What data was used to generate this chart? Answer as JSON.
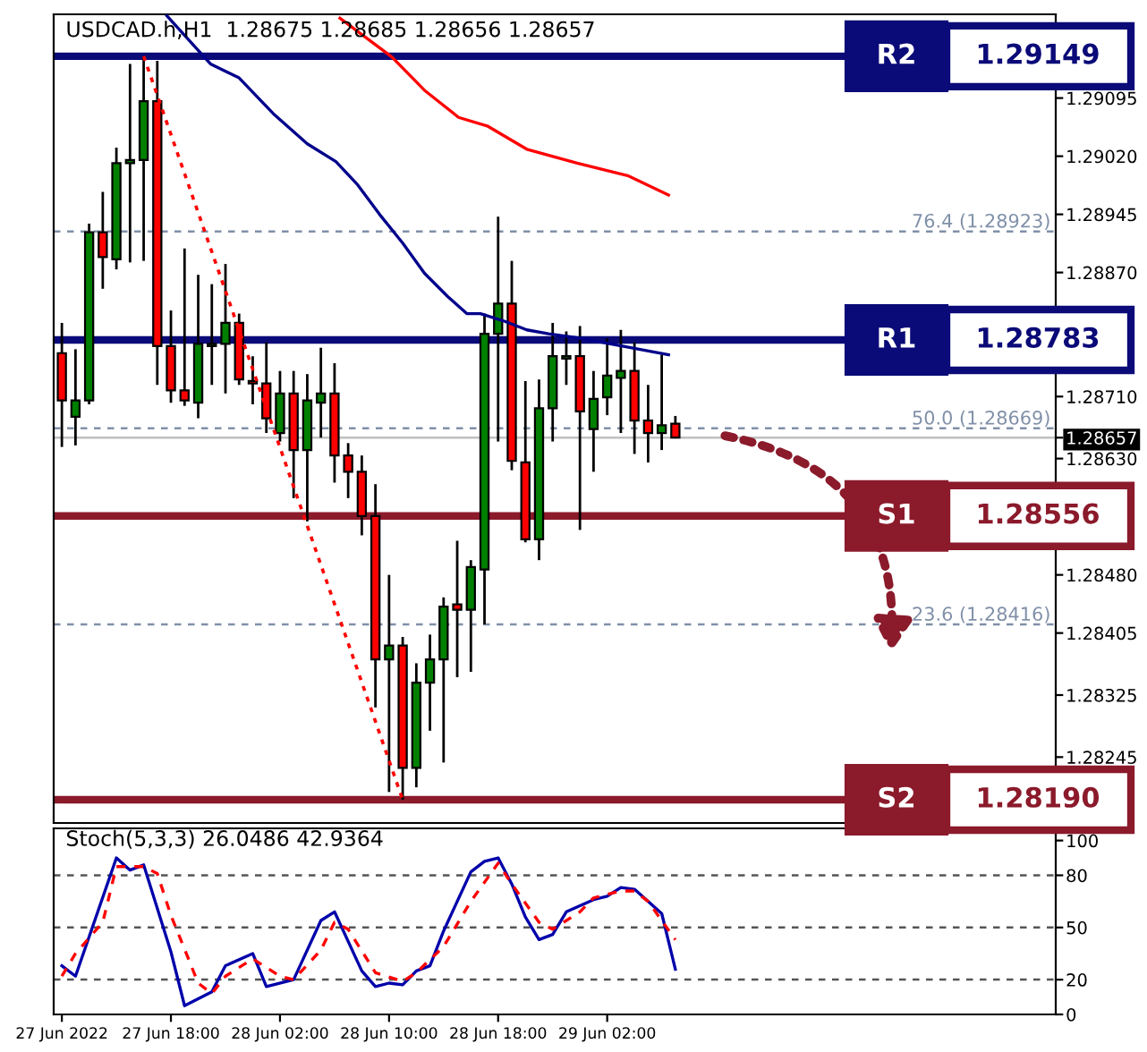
{
  "chart_data": [
    {
      "type": "candlestick",
      "title": "USDCAD.h,H1  1.28675 1.28685 1.28656 1.28657",
      "x": [
        "2022-06-27T10:00",
        "2022-06-27T11:00",
        "2022-06-27T12:00",
        "2022-06-27T13:00",
        "2022-06-27T14:00",
        "2022-06-27T15:00",
        "2022-06-27T16:00",
        "2022-06-27T17:00",
        "2022-06-27T18:00",
        "2022-06-27T19:00",
        "2022-06-27T20:00",
        "2022-06-27T21:00",
        "2022-06-27T22:00",
        "2022-06-27T23:00",
        "2022-06-28T00:00",
        "2022-06-28T01:00",
        "2022-06-28T02:00",
        "2022-06-28T03:00",
        "2022-06-28T04:00",
        "2022-06-28T05:00",
        "2022-06-28T06:00",
        "2022-06-28T07:00",
        "2022-06-28T08:00",
        "2022-06-28T09:00",
        "2022-06-28T10:00",
        "2022-06-28T11:00",
        "2022-06-28T12:00",
        "2022-06-28T13:00",
        "2022-06-28T14:00",
        "2022-06-28T15:00",
        "2022-06-28T16:00",
        "2022-06-28T17:00",
        "2022-06-28T18:00",
        "2022-06-28T19:00",
        "2022-06-28T20:00",
        "2022-06-28T21:00",
        "2022-06-28T22:00",
        "2022-06-28T23:00",
        "2022-06-29T00:00",
        "2022-06-29T01:00",
        "2022-06-29T02:00",
        "2022-06-29T03:00",
        "2022-06-29T04:00",
        "2022-06-29T05:00",
        "2022-06-29T06:00",
        "2022-06-29T07:00"
      ],
      "ohlc": [
        [
          1.28766,
          1.28805,
          1.28645,
          1.28705
        ],
        [
          1.28684,
          1.28771,
          1.28647,
          1.28705
        ],
        [
          1.28705,
          1.28933,
          1.287,
          1.28922
        ],
        [
          1.28922,
          1.28974,
          1.28849,
          1.2889
        ],
        [
          1.28887,
          1.29031,
          1.28874,
          1.29011
        ],
        [
          1.29011,
          1.29139,
          1.28883,
          1.29015
        ],
        [
          1.29015,
          1.29149,
          1.28885,
          1.29091
        ],
        [
          1.29091,
          1.29143,
          1.28725,
          1.28775
        ],
        [
          1.28775,
          1.28821,
          1.28702,
          1.28718
        ],
        [
          1.28718,
          1.28901,
          1.28698,
          1.28705
        ],
        [
          1.28702,
          1.28867,
          1.28682,
          1.28778
        ],
        [
          1.28775,
          1.28855,
          1.28725,
          1.28778
        ],
        [
          1.28778,
          1.28881,
          1.28714,
          1.28805
        ],
        [
          1.28805,
          1.28817,
          1.28725,
          1.28732
        ],
        [
          1.2873,
          1.28762,
          1.287,
          1.28727
        ],
        [
          1.28727,
          1.2878,
          1.28663,
          1.28682
        ],
        [
          1.28663,
          1.28743,
          1.28652,
          1.28714
        ],
        [
          1.28714,
          1.28743,
          1.28579,
          1.28641
        ],
        [
          1.28641,
          1.28739,
          1.28549,
          1.28705
        ],
        [
          1.28702,
          1.28773,
          1.28657,
          1.28714
        ],
        [
          1.28714,
          1.28753,
          1.28599,
          1.28634
        ],
        [
          1.28634,
          1.2865,
          1.28579,
          1.28613
        ],
        [
          1.28613,
          1.28634,
          1.28531,
          1.28556
        ],
        [
          1.28556,
          1.28597,
          1.28309,
          1.28371
        ],
        [
          1.28371,
          1.2848,
          1.282,
          1.28389
        ],
        [
          1.28389,
          1.284,
          1.2819,
          1.28231
        ],
        [
          1.28231,
          1.28366,
          1.28206,
          1.28341
        ],
        [
          1.28341,
          1.28403,
          1.28279,
          1.28371
        ],
        [
          1.28371,
          1.28451,
          1.28238,
          1.28439
        ],
        [
          1.28442,
          1.28524,
          1.28348,
          1.28435
        ],
        [
          1.28435,
          1.28499,
          1.28355,
          1.2849
        ],
        [
          1.28487,
          1.28817,
          1.28416,
          1.28791
        ],
        [
          1.28791,
          1.28942,
          1.28652,
          1.2883
        ],
        [
          1.2883,
          1.28885,
          1.28615,
          1.28627
        ],
        [
          1.28625,
          1.2873,
          1.28522,
          1.28526
        ],
        [
          1.28526,
          1.28732,
          1.28499,
          1.28695
        ],
        [
          1.28695,
          1.28805,
          1.28652,
          1.28762
        ],
        [
          1.28759,
          1.28794,
          1.28725,
          1.28762
        ],
        [
          1.28762,
          1.28801,
          1.28538,
          1.28691
        ],
        [
          1.28668,
          1.28743,
          1.28613,
          1.28707
        ],
        [
          1.28709,
          1.28785,
          1.28686,
          1.28737
        ],
        [
          1.28734,
          1.28796,
          1.28663,
          1.28743
        ],
        [
          1.28743,
          1.2878,
          1.28636,
          1.28679
        ],
        [
          1.28679,
          1.28725,
          1.28625,
          1.28663
        ],
        [
          1.28663,
          1.28764,
          1.28641,
          1.28673
        ],
        [
          1.28675,
          1.28685,
          1.28656,
          1.28657
        ]
      ],
      "series": [
        {
          "type": "line",
          "color": "#00008b",
          "line_style": "solid",
          "x": [
            "2022-06-27T17:42",
            "2022-06-27T20:54",
            "2022-06-27T23:00",
            "2022-06-28T01:30",
            "2022-06-28T04:00",
            "2022-06-28T06:06",
            "2022-06-28T07:42",
            "2022-06-28T09:18",
            "2022-06-28T11:00",
            "2022-06-28T12:36",
            "2022-06-28T14:18",
            "2022-06-28T15:42",
            "2022-06-28T16:42",
            "2022-06-28T18:30",
            "2022-06-28T20:06",
            "2022-06-28T21:42",
            "2022-06-29T00:12",
            "2022-06-29T01:00",
            "2022-06-29T06:30"
          ],
          "values": [
            1.29201,
            1.29139,
            1.29121,
            1.29075,
            1.29036,
            1.29013,
            1.28983,
            1.28945,
            1.28908,
            1.28869,
            1.28839,
            1.28817,
            1.28817,
            1.28807,
            1.28796,
            1.28791,
            1.28785,
            1.28782,
            1.28764
          ]
        },
        {
          "type": "line",
          "color": "#ff0000",
          "line_style": "solid",
          "x": [
            "2022-06-28T06:24",
            "2022-06-28T10:12",
            "2022-06-28T12:36",
            "2022-06-28T15:06",
            "2022-06-28T17:12",
            "2022-06-28T20:06",
            "2022-06-28T23:48",
            "2022-06-29T03:30",
            "2022-06-29T06:30"
          ],
          "values": [
            1.29198,
            1.29148,
            1.29105,
            1.2907,
            1.29059,
            1.29029,
            1.29011,
            1.28995,
            1.2897
          ]
        },
        {
          "type": "line",
          "color": "#ff0000",
          "line_style": "dotted",
          "x": [
            "2022-06-27T16:00",
            "2022-06-28T11:00"
          ],
          "values": [
            1.29149,
            1.2819
          ]
        }
      ],
      "xlim": [
        "2022-06-27T09:24",
        "2022-06-30T10:54"
      ],
      "ylim": [
        1.2816,
        1.29203
      ],
      "yticks": [
        {
          "value": 1.29095,
          "label": "1.29095"
        },
        {
          "value": 1.2902,
          "label": "1.29020"
        },
        {
          "value": 1.28945,
          "label": "1.28945"
        },
        {
          "value": 1.2887,
          "label": "1.28870"
        },
        {
          "value": 1.2871,
          "label": "1.28710"
        },
        {
          "value": 1.28657,
          "label": "1.28657"
        },
        {
          "value": 1.2863,
          "label": "1.28630"
        },
        {
          "value": 1.2848,
          "label": "1.28480"
        },
        {
          "value": 1.28405,
          "label": "1.28405"
        },
        {
          "value": 1.28325,
          "label": "1.28325"
        },
        {
          "value": 1.28245,
          "label": "1.28245"
        }
      ],
      "tick_labels": "y",
      "ref_lines": [
        {
          "axis": "y",
          "value": 1.28923,
          "label": "76.4 (1.28923)",
          "color": "#8090a8",
          "line_style": "dashed"
        },
        {
          "axis": "y",
          "value": 1.28669,
          "label": "50.0 (1.28669)",
          "color": "#8090a8",
          "line_style": "dashed"
        },
        {
          "axis": "y",
          "value": 1.28416,
          "label": "23.6 (1.28416)",
          "color": "#8090a8",
          "line_style": "dashed"
        },
        {
          "axis": "y",
          "value": 1.28657,
          "color": "#c0c0c0",
          "line_style": "solid"
        },
        {
          "axis": "y",
          "value": 1.29149,
          "label": "R2 1.29149",
          "color": "#0a0a78",
          "line_style": "solid"
        },
        {
          "axis": "y",
          "value": 1.28783,
          "label": "R1 1.28783",
          "color": "#0a0a78",
          "line_style": "solid"
        },
        {
          "axis": "y",
          "value": 1.28556,
          "label": "S1 1.28556",
          "color": "#8b1a2b",
          "line_style": "solid"
        },
        {
          "axis": "y",
          "value": 1.2819,
          "label": "S2 1.28190",
          "color": "#8b1a2b",
          "line_style": "solid"
        }
      ]
    },
    {
      "type": "line",
      "title": "Stoch(5,3,3) 26.0486 42.9364",
      "series": [
        {
          "type": "line",
          "color": "#0000aa",
          "line_style": "solid",
          "x": [
            "2022-06-27T10:00",
            "2022-06-27T11:00",
            "2022-06-27T14:00",
            "2022-06-27T15:00",
            "2022-06-27T16:00",
            "2022-06-27T18:00",
            "2022-06-27T19:00",
            "2022-06-27T21:00",
            "2022-06-27T22:00",
            "2022-06-28T00:00",
            "2022-06-28T01:00",
            "2022-06-28T03:00",
            "2022-06-28T05:00",
            "2022-06-28T06:00",
            "2022-06-28T08:00",
            "2022-06-28T09:00",
            "2022-06-28T10:00",
            "2022-06-28T11:00",
            "2022-06-28T12:00",
            "2022-06-28T13:00",
            "2022-06-28T14:00",
            "2022-06-28T16:00",
            "2022-06-28T17:00",
            "2022-06-28T18:00",
            "2022-06-28T19:00",
            "2022-06-28T20:00",
            "2022-06-28T21:00",
            "2022-06-28T22:00",
            "2022-06-28T23:00",
            "2022-06-29T01:00",
            "2022-06-29T02:00",
            "2022-06-29T03:00",
            "2022-06-29T04:00",
            "2022-06-29T06:00",
            "2022-06-29T07:00"
          ],
          "values": [
            28,
            22,
            90,
            83,
            86,
            36,
            5,
            13,
            28,
            35,
            16,
            20,
            54,
            59,
            25,
            16,
            18,
            17,
            25,
            28,
            48,
            82,
            88,
            90,
            75,
            56,
            43,
            46,
            59,
            66,
            68,
            73,
            72,
            58,
            26
          ]
        },
        {
          "type": "line",
          "color": "#ff0000",
          "line_style": "dashed",
          "x": [
            "2022-06-27T10:00",
            "2022-06-27T11:00",
            "2022-06-27T13:00",
            "2022-06-27T14:00",
            "2022-06-27T16:00",
            "2022-06-27T17:00",
            "2022-06-27T18:00",
            "2022-06-27T20:00",
            "2022-06-27T21:00",
            "2022-06-27T22:00",
            "2022-06-28T00:00",
            "2022-06-28T02:00",
            "2022-06-28T03:00",
            "2022-06-28T05:00",
            "2022-06-28T06:00",
            "2022-06-28T07:00",
            "2022-06-28T09:00",
            "2022-06-28T11:00",
            "2022-06-28T12:00",
            "2022-06-28T14:00",
            "2022-06-28T16:00",
            "2022-06-28T18:00",
            "2022-06-28T19:00",
            "2022-06-28T21:00",
            "2022-06-28T22:00",
            "2022-06-29T00:00",
            "2022-06-29T01:00",
            "2022-06-29T03:00",
            "2022-06-29T04:00",
            "2022-06-29T05:00",
            "2022-06-29T07:00"
          ],
          "values": [
            22,
            35,
            53,
            85,
            85,
            81,
            57,
            18,
            12,
            22,
            32,
            22,
            20,
            37,
            53,
            49,
            24,
            19,
            24,
            39,
            65,
            87,
            75,
            53,
            49,
            59,
            67,
            71,
            71,
            65,
            43
          ]
        }
      ],
      "xlim": [
        "2022-06-27T09:24",
        "2022-06-30T10:54"
      ],
      "ylim": [
        0,
        107
      ],
      "yticks": [
        0,
        20,
        50,
        80,
        100
      ],
      "xticks": [
        {
          "value": "2022-06-27T10:00",
          "label": "27 Jun 2022"
        },
        {
          "value": "2022-06-27T18:00",
          "label": "27 Jun 18:00"
        },
        {
          "value": "2022-06-28T02:00",
          "label": "28 Jun 02:00"
        },
        {
          "value": "2022-06-28T10:00",
          "label": "28 Jun 10:00"
        },
        {
          "value": "2022-06-28T18:00",
          "label": "28 Jun 18:00"
        },
        {
          "value": "2022-06-29T02:00",
          "label": "29 Jun 02:00"
        }
      ],
      "ref_lines": [
        {
          "axis": "y",
          "value": 20,
          "color": "#555555",
          "line_style": "dashed"
        },
        {
          "axis": "y",
          "value": 50,
          "color": "#555555",
          "line_style": "dashed"
        },
        {
          "axis": "y",
          "value": 80,
          "color": "#555555",
          "line_style": "dashed"
        }
      ]
    }
  ]
}
